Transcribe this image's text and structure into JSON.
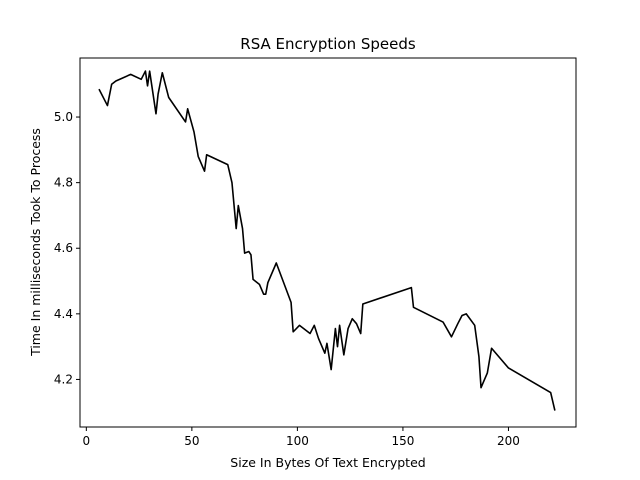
{
  "chart_data": {
    "type": "line",
    "title": "RSA Encryption Speeds",
    "xlabel": "Size In Bytes Of Text Encrypted",
    "ylabel": "Time In milliseconds Took To Process",
    "xlim": [
      -3,
      232
    ],
    "ylim": [
      4.055,
      5.18
    ],
    "xticks": [
      0,
      50,
      100,
      150,
      200
    ],
    "yticks": [
      4.2,
      4.4,
      4.6,
      4.8,
      5.0
    ],
    "xtick_labels": [
      "0",
      "50",
      "100",
      "150",
      "200"
    ],
    "ytick_labels": [
      "4.2",
      "4.4",
      "4.6",
      "4.8",
      "5.0"
    ],
    "grid": false,
    "series": [
      {
        "color": "#000000",
        "points": [
          [
            6,
            5.085
          ],
          [
            10,
            5.035
          ],
          [
            12,
            5.1
          ],
          [
            14,
            5.11
          ],
          [
            21,
            5.13
          ],
          [
            26,
            5.115
          ],
          [
            28,
            5.14
          ],
          [
            29,
            5.095
          ],
          [
            30,
            5.14
          ],
          [
            33,
            5.01
          ],
          [
            34,
            5.07
          ],
          [
            36,
            5.135
          ],
          [
            39,
            5.06
          ],
          [
            47,
            4.985
          ],
          [
            48,
            5.025
          ],
          [
            51,
            4.955
          ],
          [
            53,
            4.88
          ],
          [
            56,
            4.835
          ],
          [
            57,
            4.885
          ],
          [
            67,
            4.855
          ],
          [
            69,
            4.8
          ],
          [
            71,
            4.66
          ],
          [
            72,
            4.73
          ],
          [
            74,
            4.66
          ],
          [
            75,
            4.585
          ],
          [
            77,
            4.59
          ],
          [
            78,
            4.58
          ],
          [
            79,
            4.505
          ],
          [
            82,
            4.49
          ],
          [
            84,
            4.46
          ],
          [
            85,
            4.46
          ],
          [
            86,
            4.495
          ],
          [
            90,
            4.555
          ],
          [
            97,
            4.435
          ],
          [
            98,
            4.345
          ],
          [
            101,
            4.365
          ],
          [
            106,
            4.34
          ],
          [
            108,
            4.365
          ],
          [
            110,
            4.325
          ],
          [
            113,
            4.28
          ],
          [
            114,
            4.31
          ],
          [
            116,
            4.23
          ],
          [
            118,
            4.355
          ],
          [
            119,
            4.3
          ],
          [
            120,
            4.365
          ],
          [
            122,
            4.275
          ],
          [
            124,
            4.355
          ],
          [
            126,
            4.385
          ],
          [
            128,
            4.37
          ],
          [
            130,
            4.34
          ],
          [
            131,
            4.43
          ],
          [
            154,
            4.48
          ],
          [
            155,
            4.42
          ],
          [
            169,
            4.375
          ],
          [
            173,
            4.33
          ],
          [
            176,
            4.37
          ],
          [
            178,
            4.395
          ],
          [
            180,
            4.4
          ],
          [
            184,
            4.365
          ],
          [
            186,
            4.27
          ],
          [
            187,
            4.175
          ],
          [
            190,
            4.22
          ],
          [
            192,
            4.295
          ],
          [
            200,
            4.235
          ],
          [
            220,
            4.16
          ],
          [
            222,
            4.105
          ]
        ]
      }
    ]
  }
}
